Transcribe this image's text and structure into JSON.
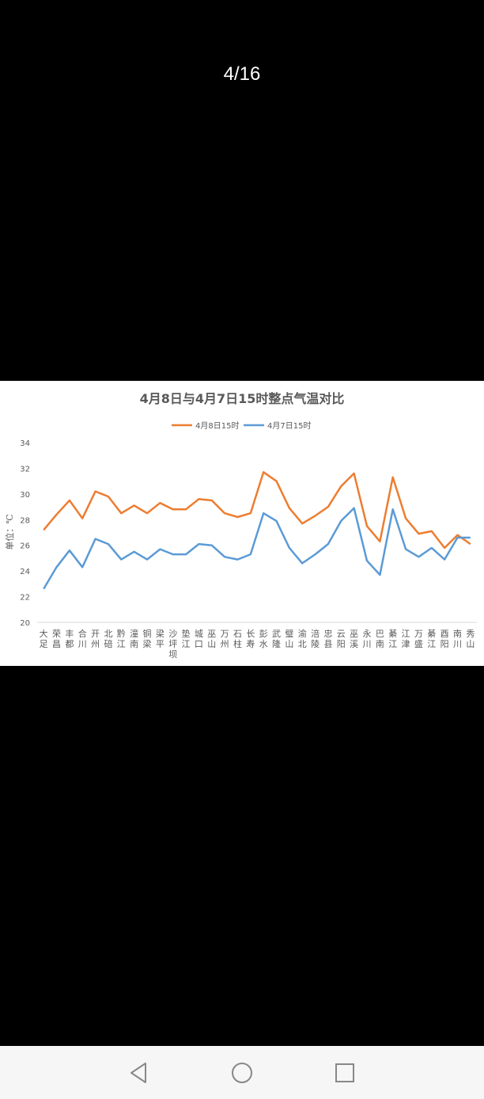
{
  "viewer": {
    "page_counter": "4/16"
  },
  "chart_data": {
    "type": "line",
    "title": "4月8日与4月7日15时整点气温对比",
    "ylabel": "单位：℃",
    "xlabel": "",
    "ylim": [
      20,
      34
    ],
    "yticks": [
      20,
      22,
      24,
      26,
      28,
      30,
      32,
      34
    ],
    "grid": false,
    "legend": "top",
    "categories": [
      "大足",
      "荣昌",
      "丰都",
      "合川",
      "开州",
      "北碚",
      "黔江",
      "潼南",
      "铜梁",
      "梁平",
      "沙坪坝",
      "垫江",
      "城口",
      "巫山",
      "万州",
      "石柱",
      "长寿",
      "彭水",
      "武隆",
      "璧山",
      "渝北",
      "涪陵",
      "忠县",
      "云阳",
      "巫溪",
      "永川",
      "巴南",
      "綦江",
      "江津",
      "万盛",
      "綦江",
      "酉阳",
      "南川",
      "秀山"
    ],
    "series": [
      {
        "name": "4月8日15时",
        "color": "#ED7D31",
        "values": [
          27.2,
          28.4,
          29.5,
          28.1,
          30.2,
          29.8,
          28.5,
          29.1,
          28.5,
          29.3,
          28.8,
          28.8,
          29.6,
          29.5,
          28.5,
          28.2,
          28.5,
          31.7,
          31.0,
          28.9,
          27.7,
          28.3,
          29.0,
          30.6,
          31.6,
          27.5,
          26.3,
          31.3,
          28.1,
          26.9,
          27.1,
          25.8,
          26.8,
          26.1
        ]
      },
      {
        "name": "4月7日15时",
        "color": "#5B9BD5",
        "values": [
          22.6,
          24.3,
          25.6,
          24.3,
          26.5,
          26.1,
          24.9,
          25.5,
          24.9,
          25.7,
          25.3,
          25.3,
          26.1,
          26.0,
          25.1,
          24.9,
          25.3,
          28.5,
          27.9,
          25.8,
          24.6,
          25.3,
          26.1,
          27.9,
          28.9,
          24.8,
          23.7,
          28.8,
          25.7,
          25.1,
          25.8,
          24.9,
          26.6,
          26.6
        ]
      }
    ]
  },
  "nav": {
    "back": "back-button",
    "home": "home-button",
    "recents": "recents-button"
  }
}
